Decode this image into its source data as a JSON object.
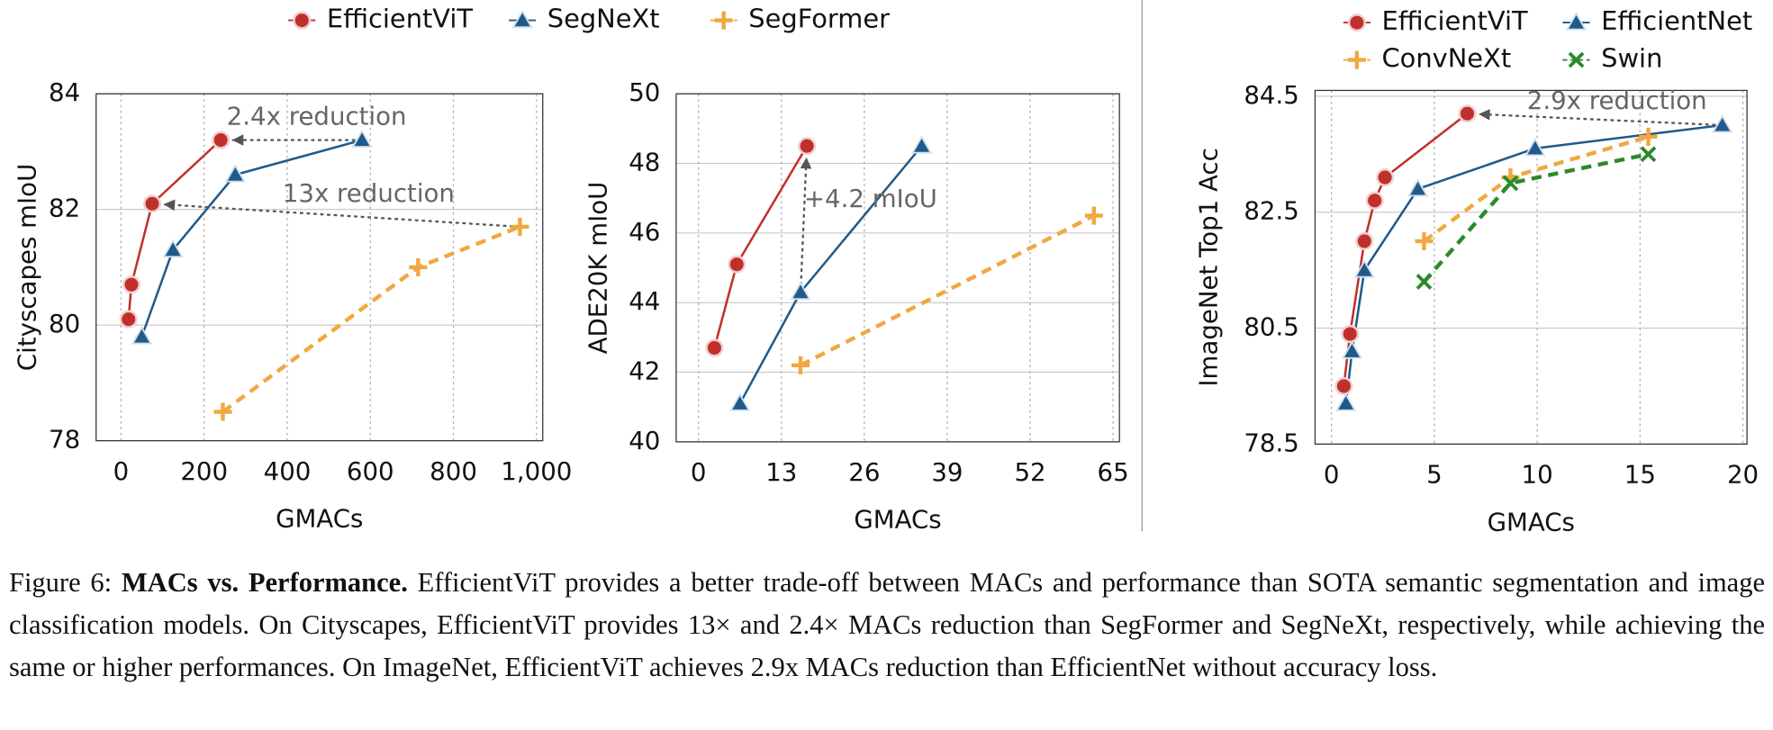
{
  "chart_data": [
    {
      "type": "line",
      "xlabel": "GMACs",
      "ylabel": "Cityscapes mIoU",
      "xlim": [
        -60,
        1015
      ],
      "ylim": [
        78,
        84
      ],
      "xticks": [
        0,
        200,
        400,
        600,
        800,
        {
          "value": 1000,
          "label": "1,000"
        }
      ],
      "yticks": [
        78,
        80,
        82,
        84
      ],
      "grid": true,
      "annotations": [
        "2.4x reduction",
        "13x reduction"
      ],
      "series": [
        {
          "name": "EfficientViT",
          "color": "#c0302b",
          "marker": "circle",
          "dashed": false,
          "x": [
            18,
            25,
            75,
            240
          ],
          "values": [
            80.1,
            80.7,
            82.1,
            83.2
          ]
        },
        {
          "name": "SegNeXt",
          "color": "#1f5a8a",
          "marker": "triangle",
          "dashed": false,
          "x": [
            50,
            125,
            275,
            580
          ],
          "values": [
            79.8,
            81.3,
            82.6,
            83.2
          ]
        },
        {
          "name": "SegFormer",
          "color": "#f0a840",
          "marker": "plus",
          "dashed": true,
          "x": [
            245,
            715,
            960
          ],
          "values": [
            78.5,
            81.0,
            81.7
          ]
        }
      ]
    },
    {
      "type": "line",
      "xlabel": "GMACs",
      "ylabel": "ADE20K mIoU",
      "xlim": [
        -3.5,
        66
      ],
      "ylim": [
        40,
        50
      ],
      "xticks": [
        0,
        13,
        26,
        39,
        52,
        65
      ],
      "yticks": [
        40,
        42,
        44,
        46,
        48,
        50
      ],
      "grid": true,
      "annotations": [
        "+4.2 mIoU"
      ],
      "series": [
        {
          "color": "#c0302b",
          "marker": "circle",
          "dashed": false,
          "x": [
            2.5,
            6,
            17
          ],
          "values": [
            42.7,
            45.1,
            48.5
          ]
        },
        {
          "color": "#1f5a8a",
          "marker": "triangle",
          "dashed": false,
          "x": [
            6.5,
            16,
            35
          ],
          "values": [
            41.1,
            44.3,
            48.5
          ]
        },
        {
          "color": "#f0a840",
          "marker": "plus",
          "dashed": true,
          "x": [
            16,
            62
          ],
          "values": [
            42.2,
            46.5
          ]
        }
      ]
    },
    {
      "type": "line",
      "xlabel": "GMACs",
      "ylabel": "ImageNet Top1 Acc",
      "xlim": [
        -0.8,
        20.2
      ],
      "ylim": [
        78.5,
        84.6
      ],
      "xticks": [
        0,
        5,
        10,
        15,
        20
      ],
      "yticks": [
        78.5,
        80.5,
        82.5,
        84.5
      ],
      "grid": true,
      "annotations": [
        "2.9x reduction"
      ],
      "series": [
        {
          "name": "EfficientViT",
          "color": "#c0302b",
          "marker": "circle",
          "dashed": false,
          "x": [
            0.6,
            0.9,
            1.6,
            2.1,
            2.6,
            6.6
          ],
          "values": [
            79.5,
            80.4,
            82.0,
            82.7,
            83.1,
            84.2
          ]
        },
        {
          "name": "EfficientNet",
          "color": "#1f5a8a",
          "marker": "triangle",
          "dashed": false,
          "x": [
            0.7,
            1.0,
            1.6,
            4.2,
            9.9,
            19
          ],
          "values": [
            79.2,
            80.1,
            81.5,
            82.9,
            83.6,
            84.0
          ]
        },
        {
          "name": "ConvNeXt",
          "color": "#f0a840",
          "marker": "plus",
          "dashed": true,
          "x": [
            4.5,
            8.7,
            15.4
          ],
          "values": [
            82.0,
            83.1,
            83.8
          ]
        },
        {
          "name": "Swin",
          "color": "#2b8a2b",
          "marker": "cross",
          "dashed": true,
          "x": [
            4.5,
            8.7,
            15.4
          ],
          "values": [
            81.3,
            83.0,
            83.5
          ]
        }
      ]
    }
  ],
  "caption": {
    "label": "Figure 6:",
    "bold": "MACs vs. Performance.",
    "text": "EfficientViT provides a better trade-off between MACs and performance than SOTA semantic segmentation and image classification models. On Cityscapes, EfficientViT provides 13× and 2.4× MACs reduction than SegFormer and SegNeXt, respectively, while achieving the same or higher performances. On ImageNet, EfficientViT achieves 2.9x MACs reduction than EfficientNet without accuracy loss."
  }
}
